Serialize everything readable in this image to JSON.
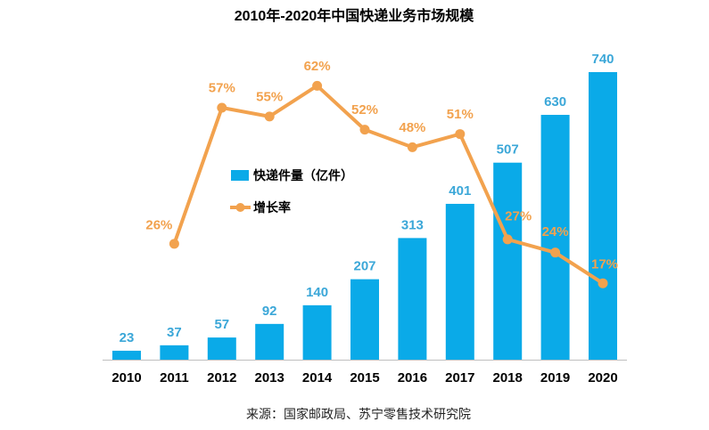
{
  "chart_data": {
    "type": "bar",
    "title": "2010年-2020年中国快递业务市场规模",
    "categories": [
      "2010",
      "2011",
      "2012",
      "2013",
      "2014",
      "2015",
      "2016",
      "2017",
      "2018",
      "2019",
      "2020"
    ],
    "series": [
      {
        "name": "快递件量（亿件）",
        "type": "bar",
        "values": [
          23,
          37,
          57,
          92,
          140,
          207,
          313,
          401,
          507,
          630,
          740
        ]
      },
      {
        "name": "增长率",
        "type": "line",
        "values": [
          null,
          26,
          57,
          55,
          62,
          52,
          48,
          51,
          27,
          24,
          17
        ],
        "data_labels": [
          null,
          "26%",
          "57%",
          "55%",
          "62%",
          "52%",
          "48%",
          "51%",
          "27%",
          "24%",
          "17%"
        ]
      }
    ],
    "grid": false,
    "legend_position": "left inside plot",
    "source": "来源：国家邮政局、苏宁零售技术研究院",
    "colors": {
      "bar": "#0AAAE8",
      "bar_label": "#3BA7D8",
      "line": "#F2A24E",
      "line_label": "#F2A24E",
      "axis": "#BFBFBF"
    }
  }
}
